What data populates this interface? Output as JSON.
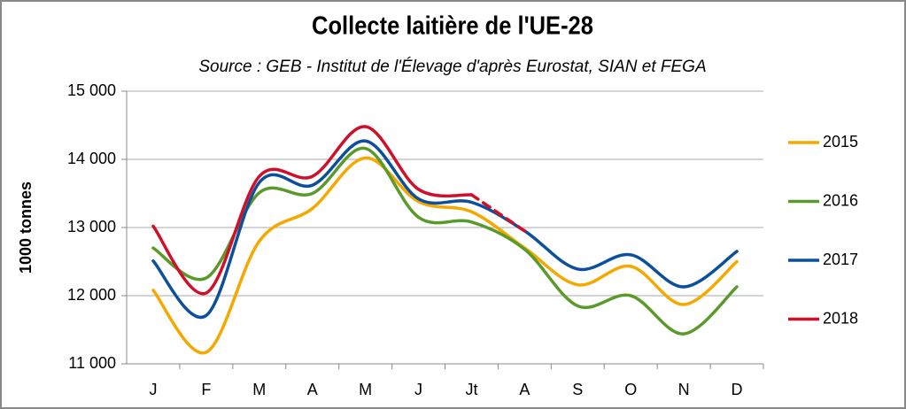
{
  "chart_data": {
    "type": "line",
    "title": "Collecte laitière de l'UE-28",
    "subtitle": "Source : GEB - Institut de l'Élevage d'après Eurostat, SIAN et FEGA",
    "y_label": "1000 tonnes",
    "categories": [
      "J",
      "F",
      "M",
      "A",
      "M",
      "J",
      "Jt",
      "A",
      "S",
      "O",
      "N",
      "D"
    ],
    "series": [
      {
        "name": "2015",
        "color": "#f5a800",
        "values": [
          12080,
          11170,
          12800,
          13280,
          14020,
          13380,
          13230,
          12700,
          12160,
          12430,
          11870,
          12500
        ]
      },
      {
        "name": "2016",
        "color": "#5a9a2a",
        "values": [
          12700,
          12260,
          13510,
          13500,
          14160,
          13150,
          13080,
          12680,
          11850,
          12000,
          11440,
          12130
        ]
      },
      {
        "name": "2017",
        "color": "#0c4f9a",
        "values": [
          12510,
          11710,
          13660,
          13620,
          14270,
          13420,
          13370,
          12950,
          12390,
          12600,
          12130,
          12650
        ]
      },
      {
        "name": "2018",
        "color": "#d0102a",
        "values": [
          13020,
          12040,
          13750,
          13750,
          14480,
          13560,
          13480,
          12950,
          null,
          null,
          null,
          null
        ],
        "dashed_from": "Jt"
      }
    ],
    "ylim": [
      11000,
      15000
    ],
    "yticks": [
      {
        "value": 11000,
        "label": "11 000"
      },
      {
        "value": 12000,
        "label": "12 000"
      },
      {
        "value": 13000,
        "label": "13 000"
      },
      {
        "value": 14000,
        "label": "14 000"
      },
      {
        "value": 15000,
        "label": "15 000"
      }
    ],
    "grid": true,
    "legend": "right"
  }
}
